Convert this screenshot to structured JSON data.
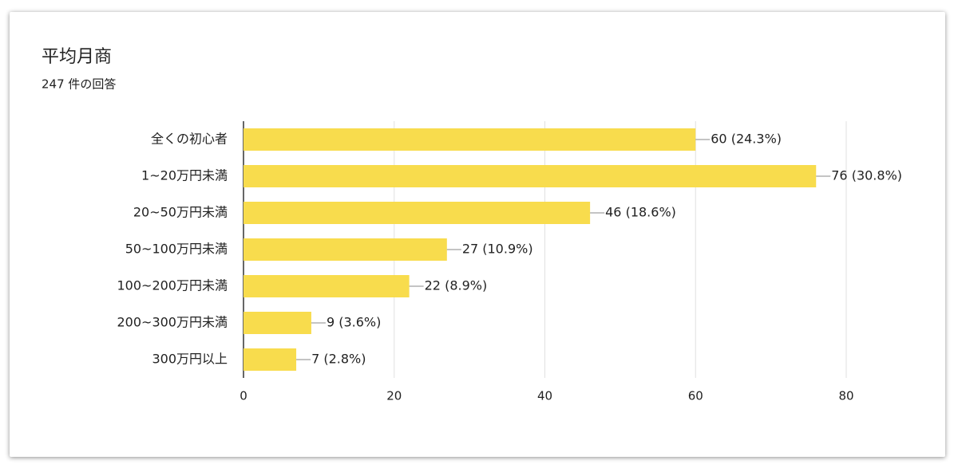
{
  "chart_data": {
    "type": "bar",
    "orientation": "horizontal",
    "title": "平均月商",
    "subtitle": "247 件の回答",
    "categories": [
      "全くの初心者",
      "1~20万円未満",
      "20~50万円未満",
      "50~100万円未満",
      "100~200万円未満",
      "200~300万円未満",
      "300万円以上"
    ],
    "values": [
      60,
      76,
      46,
      27,
      22,
      9,
      7
    ],
    "value_labels": [
      "60 (24.3%)",
      "76 (30.8%)",
      "46 (18.6%)",
      "27 (10.9%)",
      "22 (8.9%)",
      "9 (3.6%)",
      "7 (2.8%)"
    ],
    "color": "#f8dc4d",
    "xlim": [
      0,
      80
    ],
    "xticks": [
      0,
      20,
      40,
      60,
      80
    ],
    "grid": true
  }
}
